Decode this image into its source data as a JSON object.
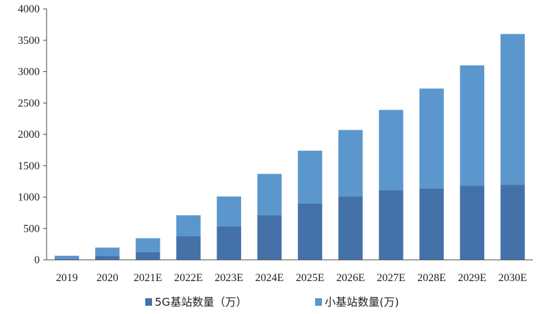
{
  "chart_data": {
    "type": "bar",
    "stacked": true,
    "categories": [
      "2019",
      "2020",
      "2021E",
      "2022E",
      "2023E",
      "2024E",
      "2025E",
      "2026E",
      "2027E",
      "2028E",
      "2029E",
      "2030E"
    ],
    "series": [
      {
        "name": "5G基站数量（万）",
        "color": "#4472a8",
        "values": [
          15,
          60,
          120,
          380,
          530,
          710,
          900,
          1010,
          1110,
          1140,
          1180,
          1200
        ]
      },
      {
        "name": "小基站数量(万)",
        "color": "#5b97cc",
        "values": [
          50,
          135,
          225,
          330,
          480,
          660,
          840,
          1060,
          1280,
          1590,
          1920,
          2400
        ]
      }
    ],
    "yticks": [
      0,
      500,
      1000,
      1500,
      2000,
      2500,
      3000,
      3500,
      4000
    ],
    "ylim": [
      0,
      4000
    ],
    "grid": false,
    "legend_position": "bottom"
  }
}
